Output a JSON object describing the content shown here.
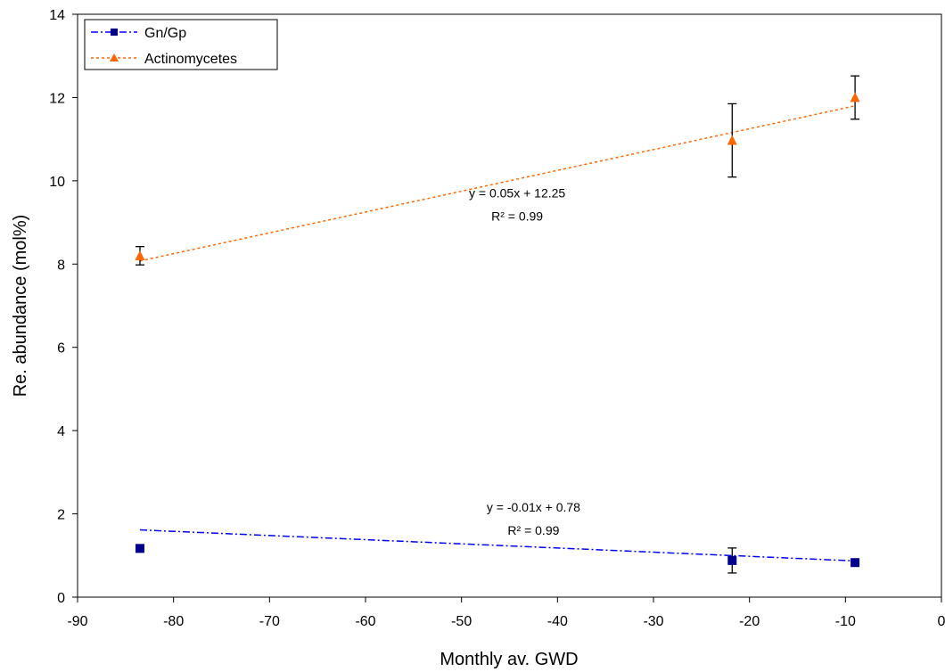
{
  "chart_data": {
    "type": "scatter",
    "xlabel": "Monthly av. GWD",
    "ylabel": "Re. abundance (mol%)",
    "xlim": [
      -90,
      0
    ],
    "ylim": [
      0,
      14
    ],
    "xticks": [
      -90,
      -80,
      -70,
      -60,
      -50,
      -40,
      -30,
      -20,
      -10,
      0
    ],
    "yticks": [
      0,
      2,
      4,
      6,
      8,
      10,
      12,
      14
    ],
    "grid": false,
    "legend_position": "top-left",
    "series": [
      {
        "name": "Gn/Gp",
        "color": "#00008b",
        "trend_color": "#0000ff",
        "marker": "square",
        "trend_style": "dash-dot",
        "x": [
          -83.5,
          -21.8,
          -9
        ],
        "y": [
          1.17,
          0.88,
          0.83
        ],
        "error": [
          0,
          0.3,
          0
        ],
        "trendline": {
          "slope": -0.01,
          "intercept": 0.78,
          "equation": "y = -0.01x + 0.78",
          "r2": "R² = 0.99"
        }
      },
      {
        "name": "Actinomycetes",
        "color": "#ff6600",
        "trend_color": "#ff6600",
        "marker": "triangle",
        "trend_style": "dotted",
        "x": [
          -83.5,
          -21.8,
          -9
        ],
        "y": [
          8.2,
          10.97,
          12.0
        ],
        "error": [
          0.22,
          0.88,
          0.52
        ],
        "trendline": {
          "slope": 0.05,
          "intercept": 12.25,
          "equation": "y = 0.05x + 12.25",
          "r2": "R² = 0.99"
        }
      }
    ]
  }
}
